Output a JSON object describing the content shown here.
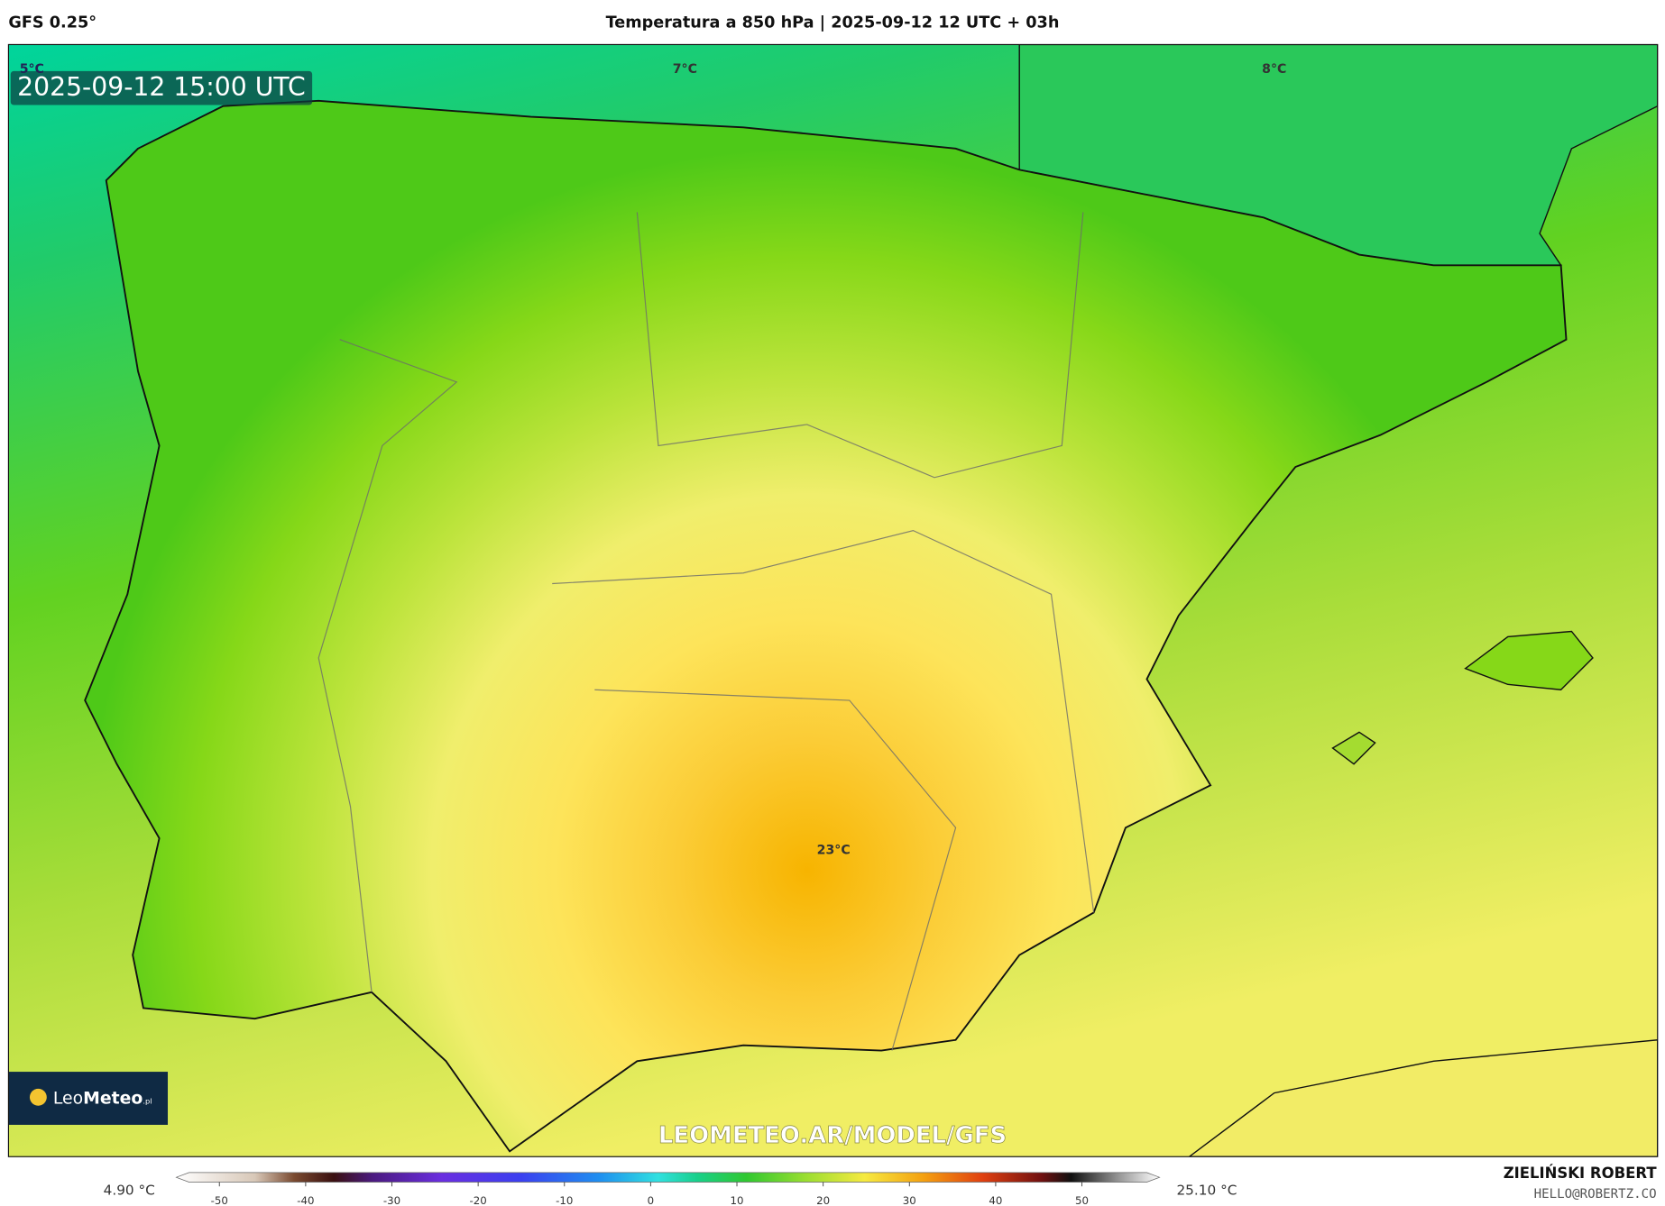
{
  "header": {
    "model": "GFS 0.25°",
    "title": "Temperatura a 850 hPa | 2025-09-12 12 UTC + 03h"
  },
  "map": {
    "timestamp": "2025-09-12 15:00 UTC",
    "labels": [
      "5°C",
      "7°C",
      "8°C",
      "23°C"
    ],
    "watermark": "LEOMETEO.AR/MODEL/GFS",
    "logo": {
      "name_light": "Leo",
      "name_bold": "Meteo",
      "suffix": ".pl"
    }
  },
  "colorbar": {
    "min_label": "4.90 °C",
    "max_label": "25.10 °C",
    "range": [
      -55,
      59
    ],
    "ticks": [
      -50,
      -40,
      -30,
      -20,
      -10,
      0,
      10,
      20,
      30,
      40,
      50
    ]
  },
  "footer": {
    "author": "ZIELIŃSKI ROBERT",
    "email": "HELLO@ROBERTZ.CO"
  }
}
